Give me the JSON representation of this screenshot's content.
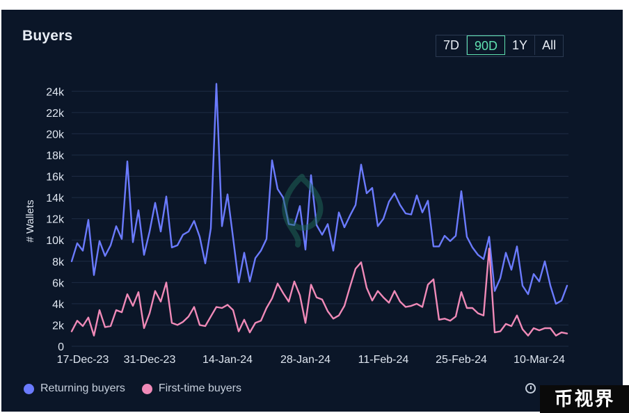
{
  "card": {
    "title": "Buyers",
    "ranges": [
      "7D",
      "90D",
      "1Y",
      "All"
    ],
    "active_range": "90D"
  },
  "watermark": "币视界",
  "icons": {
    "history": "history-icon",
    "center_logo": "opensea-logo-watermark"
  },
  "colors": {
    "background": "#0b1628",
    "returning": "#6b7bff",
    "first_time": "#f08ab8",
    "grid": "#1e2c44",
    "text": "#dfe6f0",
    "active_range": "#5fe0b0"
  },
  "chart_data": {
    "type": "line",
    "title": "Buyers",
    "xlabel": "",
    "ylabel": "# Wallets",
    "ylim": [
      0,
      25000
    ],
    "yticks": [
      0,
      2000,
      4000,
      6000,
      8000,
      10000,
      12000,
      14000,
      16000,
      18000,
      20000,
      22000,
      24000
    ],
    "ytick_labels": [
      "0",
      "2k",
      "4k",
      "6k",
      "8k",
      "10k",
      "12k",
      "14k",
      "16k",
      "18k",
      "20k",
      "22k",
      "24k"
    ],
    "xtick_labels": [
      "17-Dec-23",
      "31-Dec-23",
      "14-Jan-24",
      "28-Jan-24",
      "11-Feb-24",
      "25-Feb-24",
      "10-Mar-24"
    ],
    "grid": true,
    "legend": "bottom-left",
    "series": [
      {
        "name": "Returning buyers",
        "color": "#6b7bff",
        "values": [
          8000,
          9700,
          9000,
          11900,
          6700,
          9900,
          8500,
          9500,
          11300,
          10100,
          17400,
          9800,
          12800,
          8600,
          10800,
          13500,
          10800,
          14100,
          9300,
          9500,
          10500,
          10800,
          11800,
          10300,
          7800,
          11100,
          24700,
          11300,
          14300,
          10200,
          6000,
          8800,
          6100,
          8300,
          9000,
          10100,
          17500,
          14800,
          14000,
          11500,
          11400,
          13200,
          9100,
          16100,
          11400,
          10500,
          11500,
          9000,
          12600,
          11200,
          12300,
          13300,
          17100,
          14400,
          14900,
          11300,
          12000,
          13600,
          14400,
          13300,
          12500,
          12400,
          14200,
          12600,
          13700,
          9400,
          9400,
          10400,
          9900,
          10400,
          14600,
          10300,
          9300,
          8600,
          8200,
          10300,
          5200,
          6400,
          8800,
          7200,
          9400,
          5700,
          4900,
          6800,
          6100,
          8000,
          5700,
          4000,
          4300,
          5700
        ],
        "__note": "one value per day"
      },
      {
        "name": "First-time buyers",
        "color": "#f08ab8",
        "values": [
          1400,
          2400,
          1900,
          2700,
          1000,
          3400,
          1800,
          1900,
          3400,
          3200,
          4900,
          3800,
          5100,
          1700,
          3100,
          5200,
          4200,
          6000,
          2200,
          2000,
          2300,
          2800,
          3700,
          2000,
          1900,
          2800,
          3700,
          3600,
          3900,
          3400,
          1400,
          2500,
          1300,
          2200,
          2400,
          3600,
          4500,
          5900,
          5000,
          4200,
          6100,
          4800,
          2200,
          5800,
          4600,
          4400,
          3300,
          2600,
          2900,
          3800,
          5600,
          7300,
          7900,
          5500,
          4300,
          5200,
          4600,
          4100,
          5200,
          4200,
          3700,
          3800,
          4000,
          3700,
          5800,
          6300,
          2500,
          2600,
          2400,
          2800,
          5100,
          3600,
          3600,
          3100,
          2900,
          9200,
          1300,
          1400,
          2100,
          1900,
          2900,
          1600,
          1000,
          1700,
          1500,
          1700,
          1700,
          1000,
          1300,
          1200
        ]
      }
    ]
  },
  "legend_items": [
    {
      "label": "Returning buyers",
      "color": "#6b7bff"
    },
    {
      "label": "First-time buyers",
      "color": "#f08ab8"
    }
  ]
}
